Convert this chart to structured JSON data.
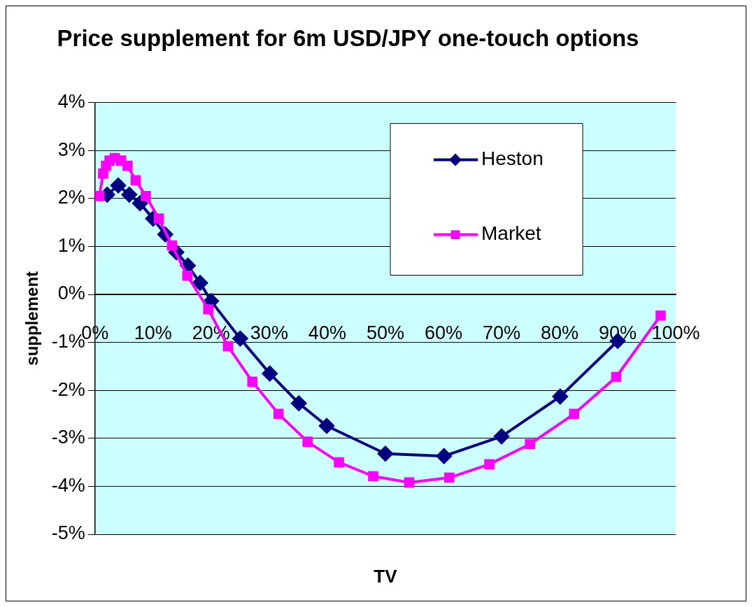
{
  "chart_data": {
    "type": "line",
    "title": "Price supplement for 6m USD/JPY one-touch options",
    "xlabel": "TV",
    "ylabel": "supplement",
    "xlim": [
      0,
      100
    ],
    "xticks": [
      {
        "value": 0,
        "label": "0%"
      },
      {
        "value": 10,
        "label": "10%"
      },
      {
        "value": 20,
        "label": "20%"
      },
      {
        "value": 30,
        "label": "30%"
      },
      {
        "value": 40,
        "label": "40%"
      },
      {
        "value": 50,
        "label": "50%"
      },
      {
        "value": 60,
        "label": "60%"
      },
      {
        "value": 70,
        "label": "70%"
      },
      {
        "value": 80,
        "label": "80%"
      },
      {
        "value": 90,
        "label": "90%"
      },
      {
        "value": 100,
        "label": "100%"
      }
    ],
    "ylim": [
      -5,
      4
    ],
    "yticks": [
      {
        "value": -5,
        "label": "-5%"
      },
      {
        "value": -4,
        "label": "-4%"
      },
      {
        "value": -3,
        "label": "-3%"
      },
      {
        "value": -2,
        "label": "-2%"
      },
      {
        "value": -1,
        "label": "-1%"
      },
      {
        "value": 0,
        "label": "0%"
      },
      {
        "value": 1,
        "label": "1%"
      },
      {
        "value": 2,
        "label": "2%"
      },
      {
        "value": 3,
        "label": "3%"
      },
      {
        "value": 4,
        "label": "4%"
      }
    ],
    "grid": "y",
    "legend": "top right",
    "line_style": "solid",
    "series": [
      {
        "name": "Heston",
        "color": "#000080",
        "marker": "diamond",
        "x": [
          2.1,
          4,
          5.9,
          7.75,
          10,
          12.1,
          14,
          16,
          18.1,
          20,
          25,
          30.1,
          35.1,
          39.9,
          50,
          60.1,
          70,
          80.1,
          90
        ],
        "values": [
          2.08,
          2.27,
          2.08,
          1.9,
          1.58,
          1.25,
          0.88,
          0.6,
          0.24,
          -0.14,
          -0.92,
          -1.65,
          -2.27,
          -2.74,
          -3.32,
          -3.37,
          -2.96,
          -2.13,
          -0.97
        ]
      },
      {
        "name": "Market",
        "color": "#ff00ff",
        "marker": "square",
        "x": [
          0.75,
          1.4,
          1.9,
          2.5,
          3.4,
          4.5,
          5.6,
          7,
          8.75,
          11,
          13.25,
          15.9,
          19.5,
          22.9,
          27.1,
          31.6,
          36.6,
          42,
          47.9,
          54.1,
          61,
          67.9,
          74.9,
          82.5,
          89.75,
          97.4
        ],
        "values": [
          2.05,
          2.52,
          2.68,
          2.79,
          2.84,
          2.79,
          2.68,
          2.38,
          2.05,
          1.58,
          1.02,
          0.39,
          -0.31,
          -1.08,
          -1.82,
          -2.49,
          -3.07,
          -3.5,
          -3.79,
          -3.92,
          -3.82,
          -3.54,
          -3.12,
          -2.49,
          -1.72,
          -0.44
        ]
      }
    ]
  }
}
